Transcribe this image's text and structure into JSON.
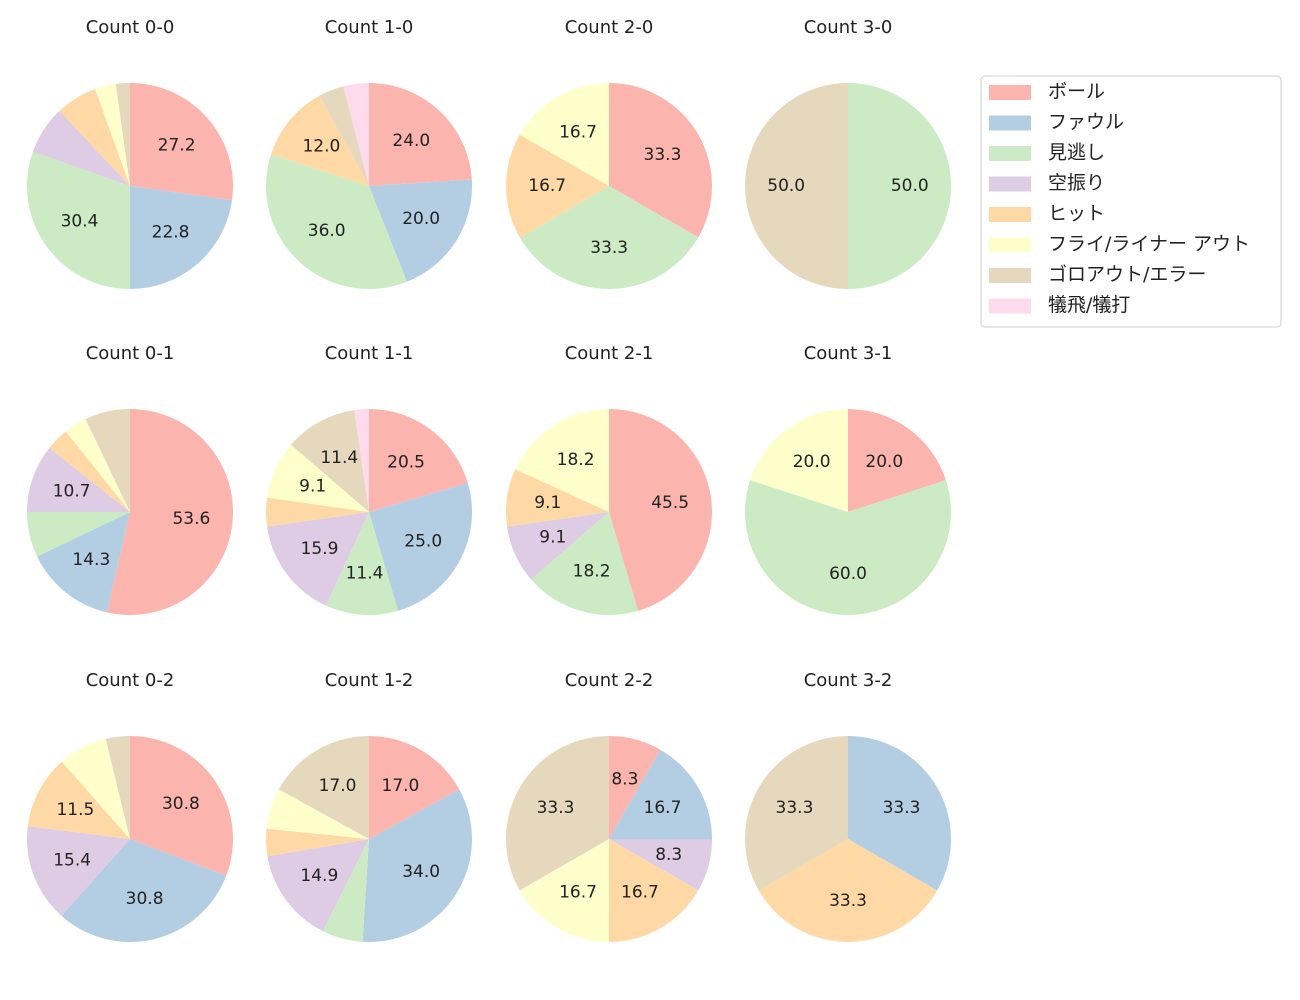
{
  "chart_data": [
    {
      "type": "pie",
      "title": "Count 0-0",
      "values": [
        27.2,
        22.8,
        30.4,
        7.6,
        6.5,
        3.3,
        2.2,
        0
      ]
    },
    {
      "type": "pie",
      "title": "Count 1-0",
      "values": [
        24.0,
        20.0,
        36.0,
        0,
        12.0,
        0,
        4.0,
        4.0
      ]
    },
    {
      "type": "pie",
      "title": "Count 2-0",
      "values": [
        33.3,
        0,
        33.3,
        0,
        16.7,
        16.7,
        0,
        0
      ]
    },
    {
      "type": "pie",
      "title": "Count 3-0",
      "values": [
        0,
        0,
        50.0,
        0,
        0,
        0,
        50.0,
        0
      ]
    },
    {
      "type": "pie",
      "title": "Count 0-1",
      "values": [
        53.6,
        14.3,
        7.1,
        10.7,
        3.6,
        3.6,
        7.1,
        0
      ]
    },
    {
      "type": "pie",
      "title": "Count 1-1",
      "values": [
        20.5,
        25.0,
        11.4,
        15.9,
        4.5,
        9.1,
        11.4,
        2.3
      ]
    },
    {
      "type": "pie",
      "title": "Count 2-1",
      "values": [
        45.5,
        0,
        18.2,
        9.1,
        9.1,
        18.2,
        0,
        0
      ]
    },
    {
      "type": "pie",
      "title": "Count 3-1",
      "values": [
        20.0,
        0,
        60.0,
        0,
        0,
        20.0,
        0,
        0
      ]
    },
    {
      "type": "pie",
      "title": "Count 0-2",
      "values": [
        30.8,
        30.8,
        0,
        15.4,
        11.5,
        7.7,
        3.8,
        0
      ]
    },
    {
      "type": "pie",
      "title": "Count 1-2",
      "values": [
        17.0,
        34.0,
        6.4,
        14.9,
        4.3,
        6.4,
        17.0,
        0
      ]
    },
    {
      "type": "pie",
      "title": "Count 2-2",
      "values": [
        8.3,
        16.7,
        0,
        8.3,
        16.7,
        16.7,
        33.3,
        0
      ]
    },
    {
      "type": "pie",
      "title": "Count 3-2",
      "values": [
        0,
        33.3,
        0,
        0,
        33.3,
        0,
        33.3,
        0
      ]
    }
  ],
  "legend": {
    "labels": [
      "ボール",
      "ファウル",
      "見逃し",
      "空振り",
      "ヒット",
      "フライ/ライナー アウト",
      "ゴロアウト/エラー",
      "犠飛/犠打"
    ],
    "colors": [
      "#fbb4ae",
      "#b3cde3",
      "#ccebc5",
      "#decbe4",
      "#fed9a6",
      "#ffffcc",
      "#e5d8bd",
      "#fddaec"
    ],
    "position": "upper right"
  },
  "min_labeled_value": 8
}
